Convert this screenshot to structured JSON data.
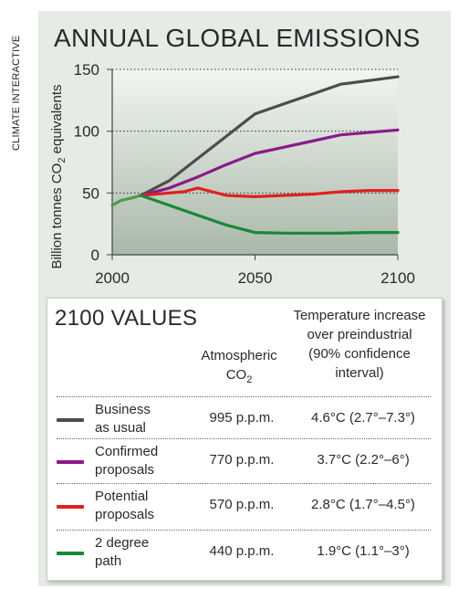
{
  "side_label": "CLIMATE INTERACTIVE",
  "chart_data": {
    "type": "line",
    "title": "ANNUAL GLOBAL EMISSIONS",
    "ylabel": "Billion tonnes CO2 equivalents",
    "xlabel": "",
    "xlim": [
      2000,
      2100
    ],
    "ylim": [
      0,
      150
    ],
    "xticks": [
      2000,
      2050,
      2100
    ],
    "yticks": [
      0,
      50,
      100,
      150
    ],
    "grid": "horizontal dotted",
    "historical": {
      "color": "#4a9c4c",
      "points": [
        [
          2000,
          40
        ],
        [
          2003,
          44
        ],
        [
          2007,
          46
        ],
        [
          2010,
          48
        ]
      ]
    },
    "series": [
      {
        "name": "Business as usual",
        "color": "#4d4d4d",
        "points": [
          [
            2010,
            48
          ],
          [
            2020,
            60
          ],
          [
            2030,
            78
          ],
          [
            2040,
            96
          ],
          [
            2050,
            114
          ],
          [
            2060,
            122
          ],
          [
            2070,
            130
          ],
          [
            2080,
            138
          ],
          [
            2090,
            141
          ],
          [
            2100,
            144
          ]
        ]
      },
      {
        "name": "Confirmed proposals",
        "color": "#8b1a8b",
        "points": [
          [
            2010,
            48
          ],
          [
            2020,
            54
          ],
          [
            2030,
            63
          ],
          [
            2040,
            73
          ],
          [
            2050,
            82
          ],
          [
            2060,
            87
          ],
          [
            2070,
            92
          ],
          [
            2080,
            97
          ],
          [
            2090,
            99
          ],
          [
            2100,
            101
          ]
        ]
      },
      {
        "name": "Potential proposals",
        "color": "#e0201e",
        "points": [
          [
            2010,
            48
          ],
          [
            2020,
            50
          ],
          [
            2025,
            51
          ],
          [
            2030,
            54
          ],
          [
            2035,
            51
          ],
          [
            2040,
            48
          ],
          [
            2050,
            47
          ],
          [
            2060,
            48
          ],
          [
            2070,
            49
          ],
          [
            2080,
            51
          ],
          [
            2090,
            52
          ],
          [
            2100,
            52
          ]
        ]
      },
      {
        "name": "2 degree path",
        "color": "#18883a",
        "points": [
          [
            2010,
            48
          ],
          [
            2020,
            40
          ],
          [
            2030,
            32
          ],
          [
            2040,
            24
          ],
          [
            2050,
            18
          ],
          [
            2060,
            17.5
          ],
          [
            2070,
            17.5
          ],
          [
            2080,
            17.5
          ],
          [
            2090,
            18
          ],
          [
            2100,
            18
          ]
        ]
      }
    ]
  },
  "table": {
    "title": "2100 VALUES",
    "header_co2": "Atmospheric CO",
    "header_co2_sub": "2",
    "header_temp_lines": [
      "Temperature increase",
      "over preindustrial",
      "(90% confidence",
      "interval)"
    ],
    "rows": [
      {
        "label": [
          "Business",
          "as usual"
        ],
        "co2": "995 p.p.m.",
        "temp": "4.6°C (2.7°–7.3°)",
        "color": "#4d4d4d"
      },
      {
        "label": [
          "Confirmed",
          "proposals"
        ],
        "co2": "770 p.p.m.",
        "temp": "3.7°C (2.2°–6°)",
        "color": "#8b1a8b"
      },
      {
        "label": [
          "Potential",
          "proposals"
        ],
        "co2": "570 p.p.m.",
        "temp": "2.8°C (1.7°–4.5°)",
        "color": "#e0201e"
      },
      {
        "label": [
          "2 degree",
          "path"
        ],
        "co2": "440 p.p.m.",
        "temp": "1.9°C (1.1°–3°)",
        "color": "#18883a"
      }
    ]
  }
}
